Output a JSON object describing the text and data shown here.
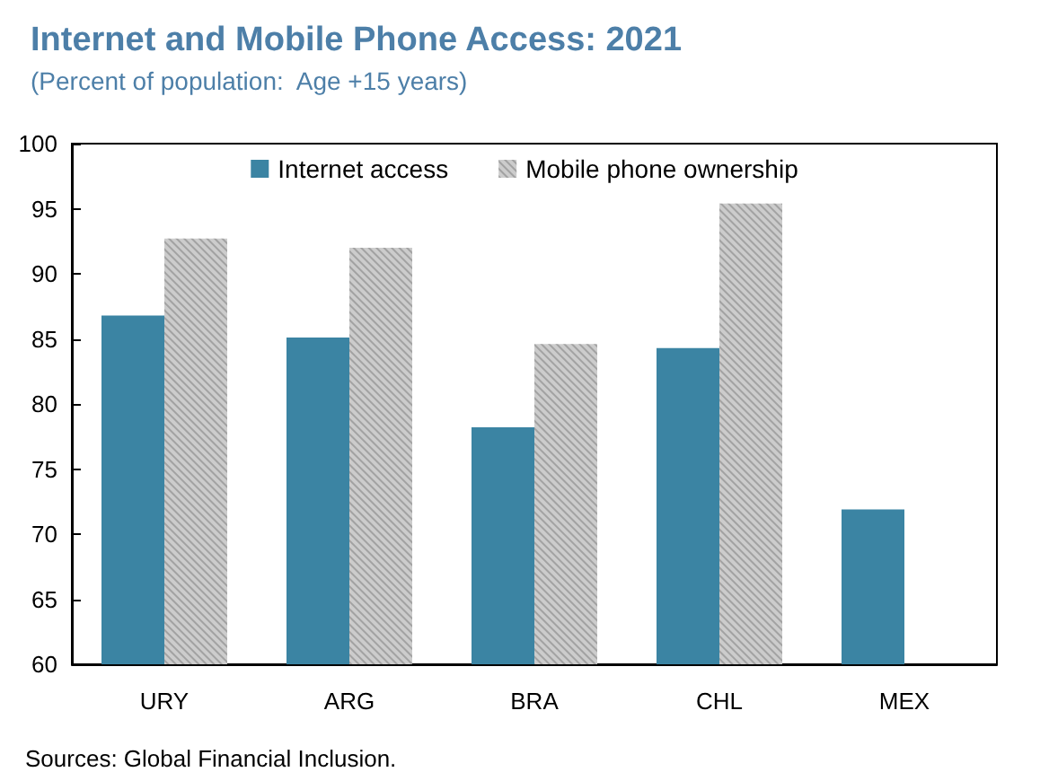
{
  "chart_data": {
    "type": "bar",
    "title": "Internet and Mobile Phone Access: 2021",
    "subtitle": "(Percent of population:  Age +15 years)",
    "categories": [
      "URY",
      "ARG",
      "BRA",
      "CHL",
      "MEX"
    ],
    "series": [
      {
        "name": "Internet access",
        "color": "#3b84a3",
        "values": [
          86.8,
          85.1,
          78.2,
          84.3,
          71.9
        ]
      },
      {
        "name": "Mobile phone ownership",
        "color": "#cccccc",
        "values": [
          92.7,
          92.0,
          84.6,
          95.4,
          null
        ]
      }
    ],
    "ylim": [
      60,
      100
    ],
    "yticks": [
      60,
      65,
      70,
      75,
      80,
      85,
      90,
      95,
      100
    ],
    "grid": false,
    "legend": "top",
    "annotations": [
      "Sources: Global Financial Inclusion."
    ]
  }
}
